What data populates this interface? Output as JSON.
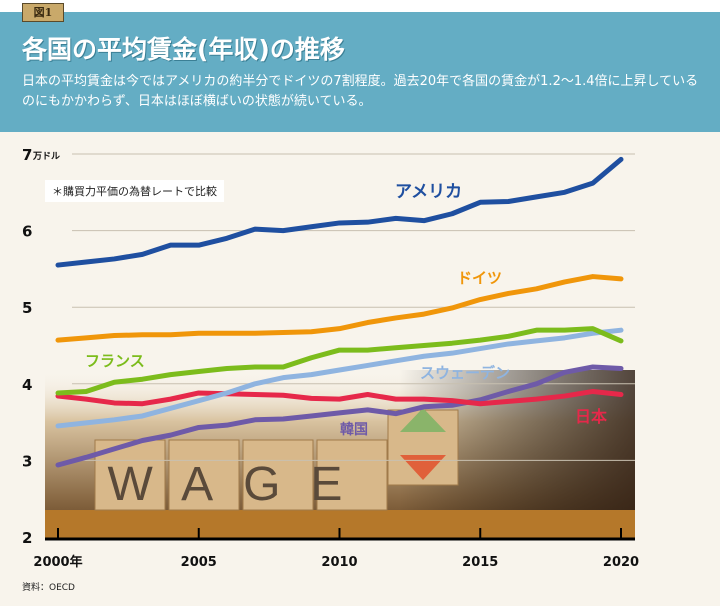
{
  "badge": "図1",
  "title": "各国の平均賃金(年収)の推移",
  "description": "日本の平均賃金は今ではアメリカの約半分でドイツの7割程度。過去20年で各国の賃金が1.2〜1.4倍に上昇しているのにもかかわらず、日本はほぼ横ばいの状態が続いている。",
  "note": "＊購買力平価の為替レートで比較",
  "source": "資料：OECD",
  "photo_text": "WAGE",
  "chart_data": {
    "type": "line",
    "title": "",
    "ylabel": "万ドル",
    "ylim": [
      2,
      7
    ],
    "yticks": [
      "2",
      "3",
      "4",
      "5",
      "6",
      "7"
    ],
    "xlim": [
      2000,
      2020
    ],
    "xticks": [
      "2000年",
      "2005",
      "2010",
      "2015",
      "2020"
    ],
    "grid": true,
    "x": [
      2000,
      2001,
      2002,
      2003,
      2004,
      2005,
      2006,
      2007,
      2008,
      2009,
      2010,
      2011,
      2012,
      2013,
      2014,
      2015,
      2016,
      2017,
      2018,
      2019,
      2020
    ],
    "series": [
      {
        "name": "アメリカ",
        "color": "#1f4fa0",
        "values": [
          5.55,
          5.59,
          5.63,
          5.69,
          5.81,
          5.81,
          5.9,
          6.02,
          6.0,
          6.05,
          6.1,
          6.11,
          6.16,
          6.13,
          6.22,
          6.37,
          6.38,
          6.44,
          6.5,
          6.62,
          6.93
        ]
      },
      {
        "name": "ドイツ",
        "color": "#f0960a",
        "values": [
          4.57,
          4.6,
          4.63,
          4.64,
          4.64,
          4.66,
          4.66,
          4.66,
          4.67,
          4.68,
          4.72,
          4.8,
          4.86,
          4.91,
          4.99,
          5.1,
          5.18,
          5.24,
          5.33,
          5.4,
          5.37
        ]
      },
      {
        "name": "フランス",
        "color": "#7cbc1c",
        "values": [
          3.88,
          3.9,
          4.02,
          4.06,
          4.12,
          4.16,
          4.2,
          4.22,
          4.22,
          4.34,
          4.44,
          4.44,
          4.47,
          4.5,
          4.53,
          4.57,
          4.62,
          4.7,
          4.7,
          4.72,
          4.56
        ]
      },
      {
        "name": "スウェーデン",
        "color": "#8fb4e0",
        "values": [
          3.45,
          3.49,
          3.53,
          3.58,
          3.68,
          3.78,
          3.88,
          4.0,
          4.08,
          4.12,
          4.18,
          4.24,
          4.3,
          4.36,
          4.4,
          4.46,
          4.52,
          4.56,
          4.6,
          4.66,
          4.7
        ]
      },
      {
        "name": "日本",
        "color": "#e6284a",
        "values": [
          3.84,
          3.8,
          3.75,
          3.74,
          3.8,
          3.88,
          3.87,
          3.86,
          3.85,
          3.81,
          3.8,
          3.86,
          3.8,
          3.8,
          3.78,
          3.74,
          3.77,
          3.8,
          3.84,
          3.9,
          3.86
        ]
      },
      {
        "name": "韓国",
        "color": "#6e5aa8",
        "values": [
          2.94,
          3.04,
          3.15,
          3.26,
          3.33,
          3.43,
          3.46,
          3.53,
          3.54,
          3.58,
          3.62,
          3.66,
          3.61,
          3.7,
          3.72,
          3.79,
          3.9,
          4.0,
          4.15,
          4.22,
          4.2
        ]
      }
    ]
  }
}
